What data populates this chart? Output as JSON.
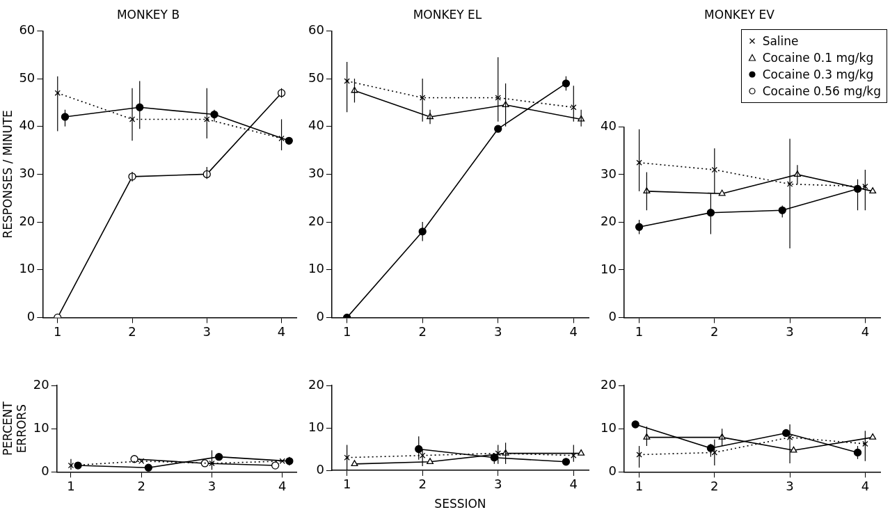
{
  "chart_data": [
    {
      "type": "line",
      "title": "MONKEY B",
      "ylabel": "RESPONSES / MINUTE",
      "xlim": [
        0.8,
        4.2
      ],
      "xticks": [
        1,
        2,
        3,
        4
      ],
      "ylim": [
        0,
        60
      ],
      "yticks": [
        0,
        10,
        20,
        30,
        40,
        50,
        60
      ],
      "series": [
        {
          "color": "#000000",
          "marker": "cross",
          "line_style": "dotted",
          "x": [
            1,
            2,
            3,
            4
          ],
          "values": [
            47,
            41.5,
            41.5,
            37.5
          ],
          "errors": [
            [
              39,
              50.5
            ],
            [
              37,
              48
            ],
            [
              37.5,
              48
            ],
            [
              35,
              41.5
            ]
          ]
        },
        {
          "color": "#000000",
          "colors": [
            "#000000",
            "#000000",
            "#000000",
            "#000000"
          ],
          "marker": "circle",
          "line_style": "solid",
          "x": [
            1.1,
            2.1,
            3.1,
            4.1
          ],
          "values": [
            42,
            44,
            42.5,
            37
          ],
          "errors": [
            [
              40,
              43.5
            ],
            [
              39.5,
              49.5
            ],
            [
              41,
              43.5
            ],
            null
          ]
        },
        {
          "color": "#000000",
          "marker": "circle",
          "line_style": "solid",
          "x": [
            1,
            2,
            3,
            4
          ],
          "values": [
            0,
            29.5,
            30,
            47
          ],
          "errors": [
            null,
            [
              28.5,
              30.5
            ],
            [
              29,
              31.5
            ],
            [
              46,
              48
            ]
          ]
        }
      ]
    },
    {
      "type": "line",
      "title": "MONKEY EL",
      "xlim": [
        0.8,
        4.2
      ],
      "xticks": [
        1,
        2,
        3,
        4
      ],
      "ylim": [
        0,
        60
      ],
      "yticks": [
        0,
        10,
        20,
        30,
        40,
        50,
        60
      ],
      "series": [
        {
          "color": "#000000",
          "marker": "cross",
          "line_style": "dotted",
          "x": [
            1,
            2,
            3,
            4
          ],
          "values": [
            49.5,
            46,
            46,
            44
          ],
          "errors": [
            [
              43,
              53.5
            ],
            [
              41,
              50
            ],
            [
              41,
              54.5
            ],
            [
              41,
              48.5
            ]
          ]
        },
        {
          "color": "#000000",
          "marker": "triangle",
          "line_style": "solid",
          "x": [
            1.1,
            2.1,
            3.1,
            4.1
          ],
          "values": [
            47.5,
            42,
            44.5,
            41.5
          ],
          "errors": [
            [
              45,
              50
            ],
            [
              40.5,
              43.5
            ],
            [
              40,
              49
            ],
            [
              40,
              43.5
            ]
          ]
        },
        {
          "color": "#000000",
          "colors": [
            "#000000",
            "#000000",
            "#000000",
            "#000000"
          ],
          "marker": "circle",
          "line_style": "solid",
          "x": [
            1,
            2,
            3,
            3.9
          ],
          "values": [
            0,
            18,
            39.5,
            49
          ],
          "errors": [
            null,
            [
              16,
              20
            ],
            null,
            [
              47.5,
              50.5
            ]
          ]
        }
      ]
    },
    {
      "type": "line",
      "title": "MONKEY EV",
      "legend": "top right",
      "xlim": [
        0.8,
        4.2
      ],
      "xticks": [
        1,
        2,
        3,
        4
      ],
      "ylim": [
        0,
        40
      ],
      "yticks": [
        0,
        10,
        20,
        30,
        40
      ],
      "series": [
        {
          "name": "Saline",
          "color": "#000000",
          "marker": "cross",
          "line_style": "dotted",
          "x": [
            1,
            2,
            3,
            4
          ],
          "values": [
            32.5,
            31,
            28,
            27.5
          ],
          "errors": [
            [
              26.5,
              39.5
            ],
            [
              26,
              35.5
            ],
            [
              14.5,
              37.5
            ],
            [
              22.5,
              31
            ]
          ]
        },
        {
          "name": "Cocaine 0.1 mg/kg",
          "color": "#000000",
          "marker": "triangle",
          "line_style": "solid",
          "x": [
            1.1,
            2.1,
            3.1,
            4.1
          ],
          "values": [
            26.5,
            26,
            30,
            26.5
          ],
          "errors": [
            [
              22.5,
              30.5
            ],
            null,
            [
              28,
              32
            ],
            null
          ]
        },
        {
          "name": "Cocaine 0.3 mg/kg",
          "color": "#000000",
          "colors": [
            "#000000",
            "#000000",
            "#000000",
            "#000000"
          ],
          "marker": "circle",
          "line_style": "solid",
          "x": [
            1,
            1.95,
            2.9,
            3.9
          ],
          "values": [
            19,
            22,
            22.5,
            27
          ],
          "errors": [
            [
              17.5,
              20.5
            ],
            [
              17.5,
              26
            ],
            [
              21,
              23.5
            ],
            [
              22.5,
              29
            ]
          ]
        },
        {
          "name": "Cocaine 0.56 mg/kg",
          "color": "#000000",
          "marker": "circle",
          "line_style": "solid"
        }
      ]
    },
    {
      "type": "line",
      "ylabel": "PERCENT ERRORS",
      "xlim": [
        0.8,
        4.2
      ],
      "xticks": [
        1,
        2,
        3,
        4
      ],
      "ylim": [
        0,
        20
      ],
      "yticks": [
        0,
        10,
        20
      ],
      "series": [
        {
          "color": "#000000",
          "marker": "cross",
          "line_style": "dotted",
          "x": [
            1,
            2,
            3,
            4
          ],
          "values": [
            1.5,
            2.5,
            2,
            2.5
          ],
          "errors": [
            [
              0.5,
              3
            ],
            null,
            [
              0.5,
              5
            ],
            null
          ]
        },
        {
          "color": "#000000",
          "colors": [
            "#000000",
            "#000000",
            "#000000",
            "#000000"
          ],
          "marker": "circle",
          "line_style": "solid",
          "x": [
            1.1,
            2.1,
            3.1,
            4.1
          ],
          "values": [
            1.5,
            1,
            3.5,
            2.5
          ],
          "errors": [
            null,
            null,
            null,
            [
              1.5,
              3.5
            ]
          ]
        },
        {
          "color": "#000000",
          "marker": "circle",
          "line_style": "solid",
          "x": [
            1.9,
            2.9,
            3.9
          ],
          "values": [
            3,
            2,
            1.5
          ]
        }
      ]
    },
    {
      "type": "line",
      "xlabel": "SESSION",
      "xlim": [
        0.8,
        4.2
      ],
      "xticks": [
        1,
        2,
        3,
        4
      ],
      "ylim": [
        0,
        20
      ],
      "yticks": [
        0,
        10,
        20
      ],
      "series": [
        {
          "color": "#000000",
          "marker": "cross",
          "line_style": "dotted",
          "x": [
            1,
            2,
            3,
            4
          ],
          "values": [
            3,
            3.5,
            4,
            3.5
          ],
          "errors": [
            [
              0,
              6
            ],
            [
              1,
              5
            ],
            [
              1.5,
              6
            ],
            [
              2,
              6
            ]
          ]
        },
        {
          "color": "#000000",
          "marker": "triangle",
          "line_style": "solid",
          "x": [
            1.1,
            2.1,
            3.1,
            4.1
          ],
          "values": [
            1.5,
            2,
            4,
            4
          ],
          "errors": [
            null,
            null,
            [
              1.5,
              6.5
            ],
            null
          ]
        },
        {
          "color": "#000000",
          "colors": [
            "#000000",
            "#000000",
            "#000000"
          ],
          "marker": "circle",
          "line_style": "solid",
          "x": [
            1.95,
            2.95,
            3.9
          ],
          "values": [
            5,
            3,
            2
          ],
          "errors": [
            [
              2.5,
              8
            ],
            [
              1.5,
              4
            ],
            null
          ]
        }
      ]
    },
    {
      "type": "line",
      "xlim": [
        0.8,
        4.2
      ],
      "xticks": [
        1,
        2,
        3,
        4
      ],
      "ylim": [
        0,
        20
      ],
      "yticks": [
        0,
        10,
        20
      ],
      "series": [
        {
          "color": "#000000",
          "marker": "cross",
          "line_style": "dotted",
          "x": [
            1,
            2,
            3,
            4
          ],
          "values": [
            4,
            4.5,
            8,
            6.5
          ],
          "errors": [
            [
              1,
              6
            ],
            [
              1.5,
              7.5
            ],
            [
              2,
              11
            ],
            [
              2.5,
              9.5
            ]
          ]
        },
        {
          "color": "#000000",
          "marker": "triangle",
          "line_style": "solid",
          "x": [
            1.1,
            2.1,
            3.05,
            4.1
          ],
          "values": [
            8,
            8,
            5,
            8
          ],
          "errors": [
            [
              6,
              10.5
            ],
            [
              6,
              10
            ],
            null,
            null
          ]
        },
        {
          "color": "#000000",
          "colors": [
            "#000000",
            "#000000",
            "#000000",
            "#000000"
          ],
          "marker": "circle",
          "line_style": "solid",
          "x": [
            0.95,
            1.95,
            2.95,
            3.9
          ],
          "values": [
            11,
            5.5,
            9,
            4.5
          ],
          "errors": [
            null,
            [
              3.5,
              6.5
            ],
            null,
            [
              3,
              6
            ]
          ]
        }
      ]
    }
  ]
}
